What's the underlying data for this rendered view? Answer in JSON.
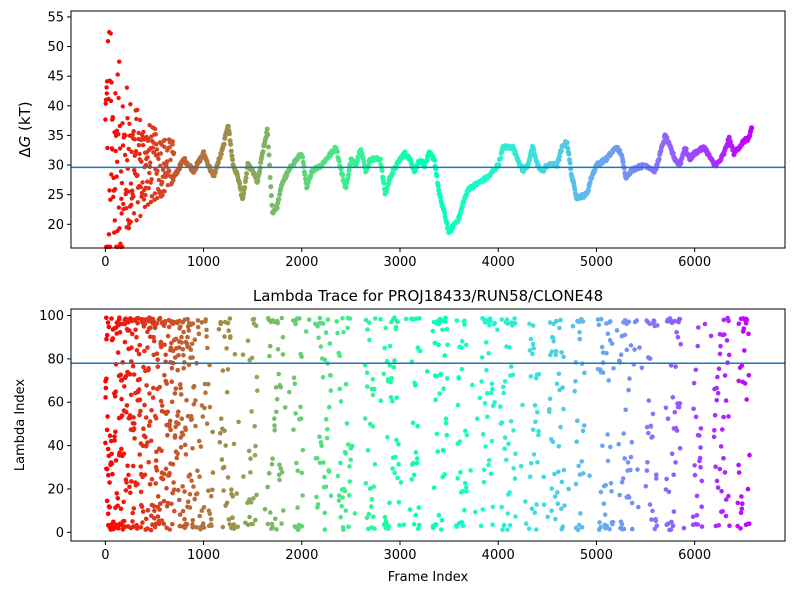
{
  "chart_data": [
    {
      "type": "scatter",
      "panel": "top",
      "title": "",
      "xlabel": "",
      "ylabel": "ΔG (kT)",
      "xlim": [
        -350,
        6920
      ],
      "ylim": [
        16,
        56
      ],
      "xticks": [
        0,
        1000,
        2000,
        3000,
        4000,
        5000,
        6000
      ],
      "yticks": [
        20,
        25,
        30,
        35,
        40,
        45,
        50,
        55
      ],
      "hline": 29.6,
      "hline_color": "#1f77b4",
      "colormap": "rainbow (frame index, red at 0 → violet at end)",
      "n_frames": 6580,
      "trace_keypoints": {
        "x": [
          700,
          800,
          900,
          1000,
          1100,
          1200,
          1250,
          1300,
          1350,
          1400,
          1450,
          1500,
          1550,
          1600,
          1650,
          1700,
          1750,
          1800,
          1900,
          2000,
          2050,
          2100,
          2200,
          2250,
          2300,
          2350,
          2400,
          2450,
          2500,
          2550,
          2600,
          2650,
          2700,
          2800,
          2850,
          2900,
          3000,
          3050,
          3100,
          3150,
          3200,
          3250,
          3300,
          3350,
          3400,
          3450,
          3500,
          3550,
          3600,
          3650,
          3700,
          3800,
          3900,
          4000,
          4050,
          4100,
          4150,
          4200,
          4250,
          4300,
          4350,
          4400,
          4450,
          4500,
          4600,
          4650,
          4700,
          4750,
          4800,
          4900,
          4950,
          5000,
          5100,
          5200,
          5250,
          5300,
          5350,
          5400,
          5500,
          5600,
          5650,
          5700,
          5750,
          5800,
          5850,
          5900,
          5950,
          6000,
          6100,
          6200,
          6250,
          6300,
          6350,
          6400,
          6500,
          6550,
          6580
        ],
        "y": [
          28,
          31,
          29,
          32,
          28,
          33,
          37,
          30,
          28,
          24,
          30,
          29,
          27,
          32,
          36,
          22,
          23,
          27,
          30,
          32,
          26,
          29,
          30,
          31,
          32,
          33,
          29,
          26,
          31,
          30,
          33,
          29,
          31,
          31,
          25,
          28,
          31,
          32,
          31,
          29,
          31,
          30,
          32,
          31,
          25,
          22,
          18.5,
          20,
          21,
          24,
          26,
          27,
          28,
          30,
          33,
          33,
          33,
          31,
          29,
          30,
          33,
          30,
          29,
          30,
          30,
          33,
          34,
          28,
          24.5,
          25,
          28,
          30,
          31,
          33,
          32,
          28,
          29,
          29.5,
          30,
          29,
          32,
          35,
          33,
          31,
          30,
          33,
          31,
          32,
          33,
          30,
          30.5,
          32,
          34.5,
          32,
          34,
          34.5,
          36
        ]
      },
      "early_scatter_note": "frames 0–700 scattered widely between ~16 and ~55, converging toward ~30"
    },
    {
      "type": "scatter",
      "panel": "bottom",
      "title": "Lambda Trace for PROJ18433/RUN58/CLONE48",
      "xlabel": "Frame Index",
      "ylabel": "Lambda Index",
      "xlim": [
        -350,
        6920
      ],
      "ylim": [
        -4,
        103
      ],
      "xticks": [
        0,
        1000,
        2000,
        3000,
        4000,
        5000,
        6000
      ],
      "yticks": [
        0,
        20,
        40,
        60,
        80,
        100
      ],
      "hline": 78,
      "hline_color": "#1f77b4",
      "colormap": "rainbow (frame index, red at 0 → violet at end)",
      "n_frames": 6580,
      "value_range": [
        1,
        99
      ],
      "distribution_note": "points span the full 1–99 range, arranged in dense vertical bands with gaps between them"
    }
  ]
}
